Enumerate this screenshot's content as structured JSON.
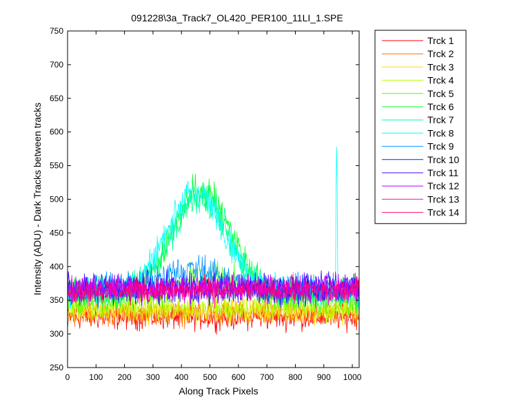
{
  "chart_data": {
    "type": "line",
    "title": "091228\\3a_Track7_OL420_PER100_11LI_1.SPE",
    "xlabel": "Along Track Pixels",
    "ylabel": "Intensity (ADU) - Dark Tracks between tracks",
    "xlim": [
      0,
      1024
    ],
    "ylim": [
      250,
      750
    ],
    "xticks": [
      0,
      100,
      200,
      300,
      400,
      500,
      600,
      700,
      800,
      900,
      1000
    ],
    "yticks": [
      250,
      300,
      350,
      400,
      450,
      500,
      550,
      600,
      650,
      700,
      750
    ],
    "grid": false,
    "legend_position": "outside-top-right",
    "series": [
      {
        "name": "Trck 1",
        "color": "#ff0000",
        "baseline": 325,
        "noise": 10
      },
      {
        "name": "Trck 2",
        "color": "#ff6d00",
        "baseline": 330,
        "noise": 10
      },
      {
        "name": "Trck 3",
        "color": "#ffdb00",
        "baseline": 335,
        "noise": 10
      },
      {
        "name": "Trck 4",
        "color": "#b6ff00",
        "baseline": 338,
        "noise": 10
      },
      {
        "name": "Trck 5",
        "color": "#49ff00",
        "baseline": 350,
        "noise": 11,
        "bump_height": 30,
        "bump_center": 500,
        "bump_width": 200
      },
      {
        "name": "Trck 6",
        "color": "#00ff24",
        "baseline": 360,
        "noise": 12,
        "bump_height": 155,
        "bump_center": 470,
        "bump_width": 150
      },
      {
        "name": "Trck 7",
        "color": "#00ff92",
        "baseline": 362,
        "noise": 12,
        "bump_height": 140,
        "bump_center": 465,
        "bump_width": 145
      },
      {
        "name": "Trck 8",
        "color": "#00ffff",
        "baseline": 365,
        "noise": 12,
        "bump_height": 145,
        "bump_center": 450,
        "bump_width": 150,
        "spike_x": 945,
        "spike_y": 578
      },
      {
        "name": "Trck 9",
        "color": "#0092ff",
        "baseline": 365,
        "noise": 12,
        "bump_height": 30,
        "bump_center": 440,
        "bump_width": 170
      },
      {
        "name": "Trck 10",
        "color": "#0024ff",
        "baseline": 365,
        "noise": 11
      },
      {
        "name": "Trck 11",
        "color": "#4900ff",
        "baseline": 370,
        "noise": 11
      },
      {
        "name": "Trck 12",
        "color": "#b600ff",
        "baseline": 368,
        "noise": 11
      },
      {
        "name": "Trck 13",
        "color": "#ff00db",
        "baseline": 366,
        "noise": 10
      },
      {
        "name": "Trck 14",
        "color": "#ff006d",
        "baseline": 364,
        "noise": 10
      }
    ]
  }
}
